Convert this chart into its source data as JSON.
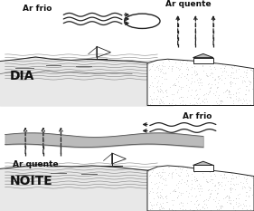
{
  "bg_color": "#ffffff",
  "title_dia": "DIA",
  "title_noite": "NOITE",
  "label_ar_frio_dia": "Ar frio",
  "label_ar_quente_dia": "Ar quente",
  "label_ar_frio_noite": "Ar frio",
  "label_ar_quente_noite": "Ar quente",
  "line_color": "#222222",
  "text_color": "#111111"
}
